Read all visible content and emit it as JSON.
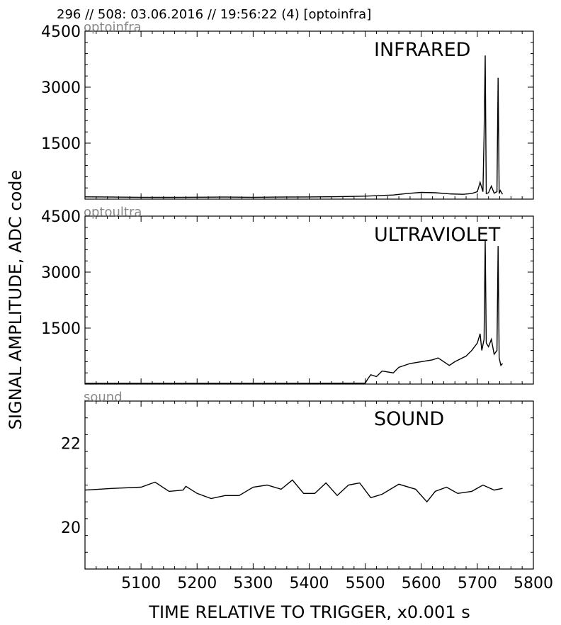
{
  "header": {
    "title": "296 // 508:   03.06.2016 // 19:56:22 (4)  [optoinfra]"
  },
  "chart_data": {
    "type": "line",
    "xlabel": "TIME RELATIVE TO TRIGGER,   x0.001 s",
    "ylabel": "SIGNAL AMPLITUDE,  ADC code",
    "xlim": [
      5000,
      5800
    ],
    "x_ticks": [
      5100,
      5200,
      5300,
      5400,
      5500,
      5600,
      5700,
      5800
    ],
    "line_color": "#000000",
    "panels": [
      {
        "source_label": "optoinfra",
        "panel_title": "INFRARED",
        "ylim": [
          0,
          4500
        ],
        "y_ticks": [
          1500,
          3000,
          4500
        ],
        "series": [
          {
            "x": [
              5000,
              5050,
              5100,
              5150,
              5200,
              5250,
              5300,
              5350,
              5400,
              5450,
              5500,
              5550,
              5575,
              5600,
              5625,
              5650,
              5675,
              5690,
              5700,
              5705,
              5710,
              5712,
              5714,
              5716,
              5720,
              5725,
              5730,
              5735,
              5737,
              5739,
              5741,
              5745
            ],
            "y": [
              60,
              55,
              50,
              48,
              52,
              55,
              50,
              55,
              58,
              65,
              80,
              110,
              150,
              180,
              170,
              140,
              130,
              150,
              200,
              450,
              200,
              1700,
              3850,
              150,
              170,
              350,
              160,
              200,
              3250,
              150,
              230,
              130
            ]
          }
        ]
      },
      {
        "source_label": "optoultra",
        "panel_title": "ULTRAVIOLET",
        "ylim": [
          0,
          4500
        ],
        "y_ticks": [
          1500,
          3000,
          4500
        ],
        "series": [
          {
            "x": [
              5000,
              5100,
              5200,
              5300,
              5400,
              5500,
              5505,
              5510,
              5520,
              5530,
              5550,
              5560,
              5580,
              5600,
              5620,
              5630,
              5640,
              5650,
              5660,
              5680,
              5690,
              5700,
              5705,
              5708,
              5712,
              5714,
              5716,
              5720,
              5725,
              5730,
              5735,
              5737,
              5739,
              5742,
              5745
            ],
            "y": [
              20,
              20,
              20,
              20,
              20,
              25,
              150,
              250,
              200,
              350,
              300,
              450,
              550,
              600,
              650,
              700,
              600,
              500,
              600,
              750,
              900,
              1100,
              1350,
              900,
              1200,
              3850,
              1100,
              1000,
              1200,
              800,
              900,
              3700,
              700,
              500,
              550
            ]
          }
        ]
      },
      {
        "source_label": "sound",
        "panel_title": "SOUND",
        "ylim": [
          19,
          23
        ],
        "y_ticks": [
          20,
          22
        ],
        "series": [
          {
            "x": [
              5000,
              5050,
              5100,
              5125,
              5150,
              5175,
              5180,
              5200,
              5225,
              5250,
              5275,
              5300,
              5325,
              5350,
              5370,
              5390,
              5410,
              5430,
              5450,
              5470,
              5490,
              5510,
              5530,
              5560,
              5590,
              5610,
              5625,
              5645,
              5665,
              5690,
              5710,
              5730,
              5745
            ],
            "y": [
              20.88,
              20.92,
              20.95,
              21.07,
              20.85,
              20.88,
              20.97,
              20.8,
              20.68,
              20.75,
              20.75,
              20.95,
              21.0,
              20.9,
              21.12,
              20.8,
              20.8,
              21.05,
              20.75,
              21.0,
              21.05,
              20.7,
              20.78,
              21.02,
              20.9,
              20.6,
              20.85,
              20.95,
              20.8,
              20.85,
              21.0,
              20.88,
              20.92
            ]
          }
        ]
      }
    ]
  }
}
